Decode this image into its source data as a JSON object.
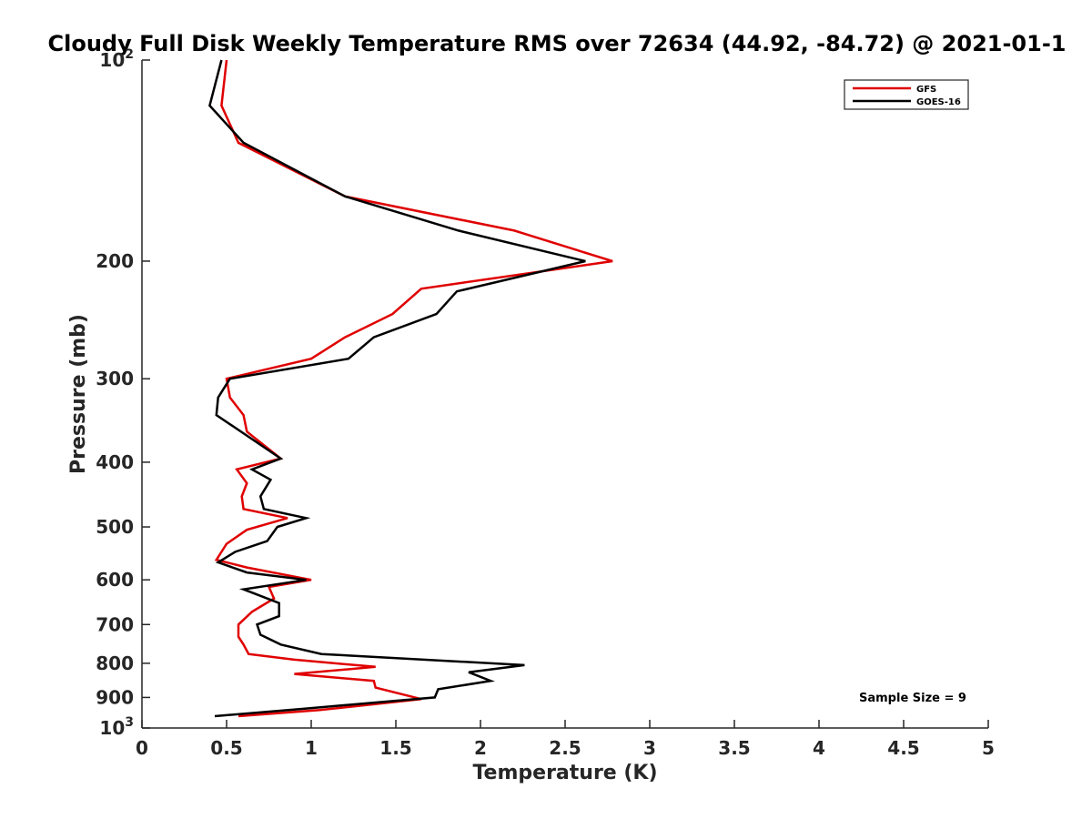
{
  "chart_data": {
    "type": "line",
    "title": "Cloudy Full Disk Weekly Temperature RMS over 72634 (44.92, -84.72) @ 2021-01-1",
    "xlabel": "Temperature (K)",
    "ylabel": "Pressure (mb)",
    "xlim": [
      0,
      5
    ],
    "ylim": [
      100,
      1000
    ],
    "y_scale": "log",
    "y_reversed": true,
    "x_ticks": [
      "0",
      "0.5",
      "1",
      "1.5",
      "2",
      "2.5",
      "3",
      "3.5",
      "4",
      "4.5",
      "5"
    ],
    "y_ticks": [
      {
        "value": 100,
        "base": "10",
        "exp": "2"
      },
      {
        "value": 200,
        "label": "200"
      },
      {
        "value": 300,
        "label": "300"
      },
      {
        "value": 400,
        "label": "400"
      },
      {
        "value": 500,
        "label": "500"
      },
      {
        "value": 600,
        "label": "600"
      },
      {
        "value": 700,
        "label": "700"
      },
      {
        "value": 800,
        "label": "800"
      },
      {
        "value": 900,
        "label": "900"
      },
      {
        "value": 1000,
        "base": "10",
        "exp": "3"
      }
    ],
    "legend_position": "top-right",
    "annotation": "Sample Size = 9",
    "series": [
      {
        "name": "GFS",
        "color": "#e00000",
        "x": [
          0.5,
          0.47,
          0.57,
          1.2,
          2.2,
          2.78,
          1.65,
          1.48,
          1.2,
          1.0,
          0.5,
          0.52,
          0.6,
          0.62,
          0.82,
          0.56,
          0.62,
          0.59,
          0.6,
          0.86,
          0.62,
          0.5,
          0.44,
          0.62,
          1.0,
          0.75,
          0.78,
          0.65,
          0.57,
          0.57,
          0.6,
          0.63,
          0.9,
          1.38,
          0.9,
          1.37,
          1.38,
          1.65,
          1.05,
          0.57
        ],
        "y": [
          100,
          117,
          133,
          160,
          180,
          200,
          220,
          240,
          260,
          280,
          300,
          320,
          340,
          360,
          395,
          410,
          430,
          450,
          470,
          485,
          505,
          530,
          560,
          575,
          600,
          615,
          640,
          670,
          700,
          730,
          750,
          775,
          790,
          810,
          830,
          850,
          870,
          905,
          940,
          960
        ]
      },
      {
        "name": "GOES-16",
        "color": "#000000",
        "x": [
          0.47,
          0.4,
          0.6,
          1.2,
          1.87,
          2.62,
          1.86,
          1.74,
          1.37,
          1.22,
          0.52,
          0.45,
          0.44,
          0.82,
          0.65,
          0.76,
          0.7,
          0.72,
          0.97,
          0.8,
          0.74,
          0.55,
          0.45,
          0.62,
          0.97,
          0.6,
          0.81,
          0.81,
          0.68,
          0.7,
          0.82,
          1.06,
          2.26,
          1.93,
          2.06,
          1.75,
          1.73,
          0.97,
          0.43
        ],
        "y": [
          100,
          117,
          133,
          160,
          180,
          200,
          222,
          240,
          260,
          280,
          300,
          320,
          340,
          395,
          410,
          425,
          450,
          470,
          485,
          500,
          525,
          545,
          565,
          585,
          600,
          620,
          650,
          680,
          700,
          725,
          750,
          775,
          805,
          825,
          850,
          875,
          900,
          935,
          960
        ]
      }
    ]
  }
}
